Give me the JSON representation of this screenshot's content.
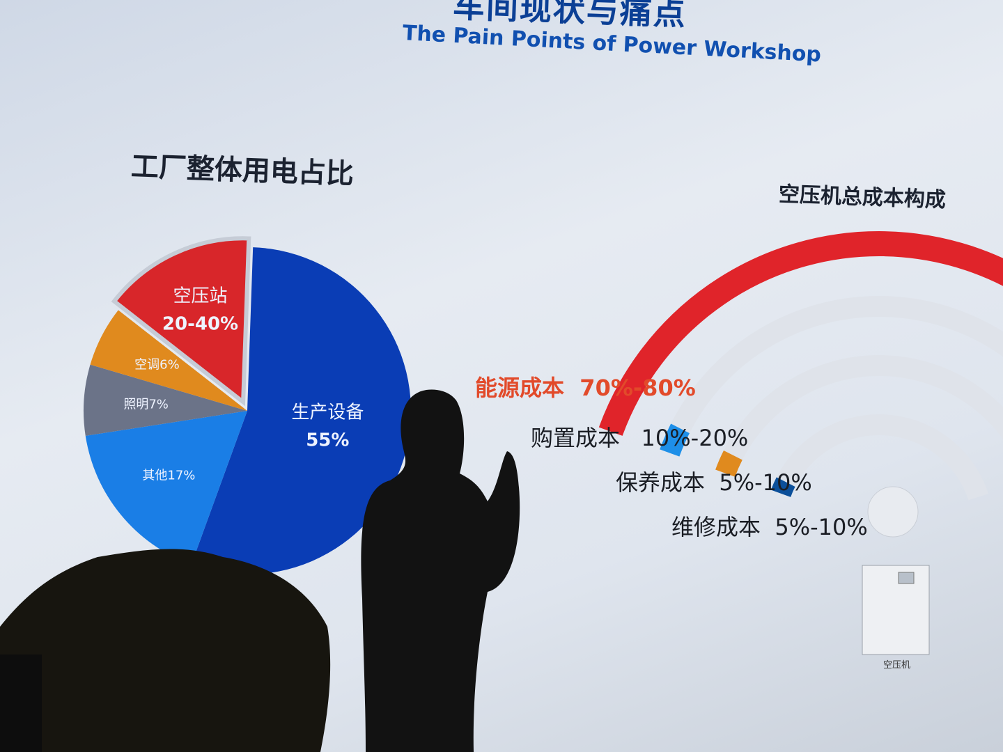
{
  "slide": {
    "title_cn": "车间现状与痛点",
    "title_en": "The Pain Points of Power Workshop"
  },
  "chart_data": [
    {
      "type": "pie",
      "title": "工厂整体用电占比",
      "slices": [
        {
          "label": "生产设备",
          "value_label": "55%",
          "value": 55,
          "color": "#0a3db5"
        },
        {
          "label": "其他",
          "value_label": "17%",
          "value": 17,
          "color": "#1a7ee6"
        },
        {
          "label": "照明",
          "value_label": "7%",
          "value": 7,
          "color": "#6b7388"
        },
        {
          "label": "空调",
          "value_label": "6%",
          "value": 6,
          "color": "#e08a1e"
        },
        {
          "label": "空压站",
          "value_label": "20-40%",
          "value_range": [
            20,
            40
          ],
          "color": "#d8262a",
          "exploded": true
        }
      ]
    },
    {
      "type": "arc",
      "title": "空压机总成本构成",
      "items": [
        {
          "label": "能源成本",
          "value": "70%-80%",
          "color": "#e0242a"
        },
        {
          "label": "购置成本",
          "value": "10%-20%",
          "color": "#1e8fe8"
        },
        {
          "label": "保养成本",
          "value": "5%-10%",
          "color": "#e08a1e"
        },
        {
          "label": "维修成本",
          "value": "5%-10%",
          "color": "#0b4f9a"
        }
      ],
      "machine_label": "空压机"
    }
  ]
}
